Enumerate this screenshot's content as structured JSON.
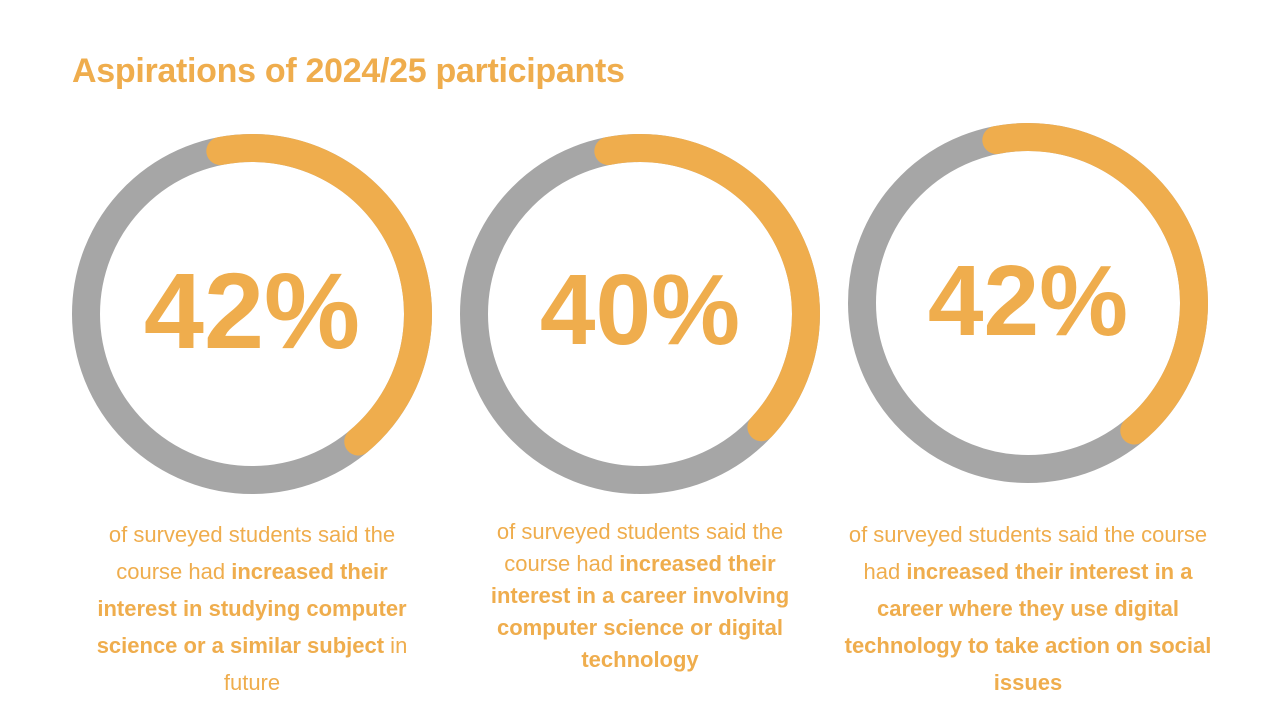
{
  "title": "Aspirations of 2024/25 participants",
  "colors": {
    "accent": "#efad4d",
    "track": "#a6a6a6",
    "background": "#ffffff"
  },
  "chart_data": [
    {
      "type": "donut",
      "value": 42,
      "label": "42%",
      "caption": {
        "before": "of surveyed students said the course had ",
        "highlight": "increased their interest in studying computer science or a similar subject",
        "after": " in future"
      }
    },
    {
      "type": "donut",
      "value": 40,
      "label": "40%",
      "caption": {
        "before": "of surveyed students said the course had ",
        "highlight": "increased their interest in a career involving computer science or digital technology",
        "after": ""
      }
    },
    {
      "type": "donut",
      "value": 42,
      "label": "42%",
      "caption": {
        "before": "of surveyed students said the course had ",
        "highlight": "increased their interest in a career where they use digital technology to take action on social issues",
        "after": ""
      }
    }
  ]
}
